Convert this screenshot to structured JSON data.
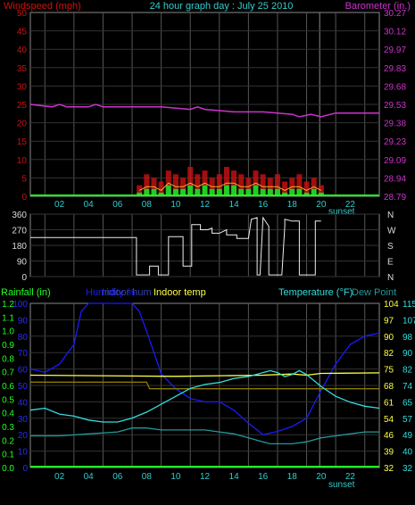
{
  "header": {
    "wind_label": "Windspeed (mph)",
    "title": "24 hour graph day : July 25 2010",
    "baro_label": "Barometer (in.)"
  },
  "colors": {
    "wind": "#cc1111",
    "baro": "#cc33cc",
    "gust": "#ff2a2a",
    "avgwind": "#22cc22",
    "rain": "#22ff22",
    "humidity": "#1a1aff",
    "indoor_hum": "#3344aa",
    "indoor_temp": "#ffff44",
    "temp": "#33dddd",
    "dew": "#229999",
    "grid": "#555555",
    "tick": "#33cccc",
    "axis_light": "#cccccc"
  },
  "legend": {
    "rainfall": "Rainfall (in)",
    "humidity": "Humidity %",
    "indoor_hum": "Indoor hum",
    "indoor_temp": "Indoor temp",
    "temperature": "Temperature (°F)",
    "dew_point": "Dew Point"
  },
  "sunset_label": "sunset",
  "chart_data": [
    {
      "type": "line",
      "title": "24 hour graph day : July 25 2010",
      "xticks": [
        "02",
        "04",
        "06",
        "08",
        "10",
        "12",
        "14",
        "16",
        "18",
        "20",
        "22"
      ],
      "y_left": {
        "label": "Windspeed (mph)",
        "ticks": [
          0,
          5,
          10,
          15,
          20,
          25,
          30,
          35,
          40,
          45,
          50
        ]
      },
      "y_right": {
        "label": "Barometer (in.)",
        "ticks": [
          "28.79",
          "28.94",
          "29.09",
          "29.23",
          "29.38",
          "29.53",
          "29.68",
          "29.83",
          "29.97",
          "30.12",
          "30.27"
        ]
      },
      "series": [
        {
          "name": "Barometer",
          "axis": "right",
          "x": [
            0,
            1.5,
            2,
            2.5,
            4,
            4.5,
            5,
            9,
            11,
            11.5,
            12,
            14,
            16,
            18,
            18.5,
            19.3,
            20,
            21,
            24
          ],
          "y": [
            29.53,
            29.51,
            29.53,
            29.51,
            29.51,
            29.53,
            29.51,
            29.51,
            29.49,
            29.51,
            29.49,
            29.47,
            29.47,
            29.45,
            29.43,
            29.45,
            29.43,
            29.46,
            29.46
          ]
        },
        {
          "axis": "left",
          "x": [
            7.5,
            8,
            8.5,
            9,
            9.5,
            10,
            10.5,
            11,
            11.5,
            12,
            12.5,
            13,
            13.5,
            14,
            14.5,
            15,
            15.5,
            16,
            16.5,
            17,
            17.5,
            18,
            18.5,
            19,
            19.5,
            20
          ],
          "y": [
            3,
            6,
            5,
            4,
            7,
            6,
            5,
            8,
            6,
            7,
            5,
            6,
            8,
            7,
            6,
            5,
            7,
            6,
            5,
            6,
            4,
            5,
            6,
            4,
            5,
            3
          ]
        },
        {
          "axis": "left",
          "x": [
            7.5,
            8,
            8.5,
            9,
            9.5,
            10,
            10.5,
            11,
            11.5,
            12,
            12.5,
            13,
            13.5,
            14,
            14.5,
            15,
            15.5,
            16,
            16.5,
            17,
            17.5,
            18,
            18.5,
            19,
            19.5,
            20
          ],
          "y": [
            1,
            2,
            2,
            1,
            3,
            2,
            2,
            3,
            2,
            3,
            2,
            2,
            3,
            3,
            2,
            2,
            3,
            2,
            2,
            2,
            1,
            2,
            2,
            1,
            2,
            1
          ]
        }
      ]
    },
    {
      "type": "line",
      "y_left": {
        "ticks": [
          0,
          90,
          180,
          270,
          360
        ]
      },
      "y_right": {
        "ticks": [
          "N",
          "E",
          "S",
          "W",
          "N"
        ]
      },
      "series": [
        {
          "x": [
            0,
            7.3,
            7.3,
            8.2,
            8.2,
            8.8,
            8.8,
            9.5,
            9.5,
            10.5,
            10.5,
            11.1,
            11.1,
            11.7,
            11.7,
            12.2,
            12.5,
            12.5,
            13.0,
            13.5,
            13.5,
            14.2,
            14.2,
            15.0,
            15.2,
            15.6,
            15.6,
            15.8,
            16.0,
            16.4,
            16.4,
            17.3,
            17.5,
            17.5,
            18.0,
            18.5,
            18.5,
            19.6,
            19.6,
            20.0
          ],
          "y": [
            225,
            225,
            10,
            10,
            60,
            60,
            10,
            10,
            230,
            230,
            60,
            60,
            300,
            300,
            270,
            270,
            280,
            250,
            250,
            270,
            240,
            240,
            220,
            220,
            330,
            340,
            10,
            10,
            340,
            290,
            10,
            10,
            290,
            330,
            320,
            320,
            10,
            10,
            320,
            320
          ]
        }
      ]
    },
    {
      "type": "line",
      "xticks": [
        "02",
        "04",
        "06",
        "08",
        "10",
        "12",
        "14",
        "16",
        "18",
        "20",
        "22"
      ],
      "y_left": {
        "label": "Rainfall (in)",
        "ticks": [
          "0.0",
          "0.1",
          "0.2",
          "0.3",
          "0.4",
          "0.5",
          "0.6",
          "0.7",
          "0.8",
          "0.9",
          "1.0",
          "1.1",
          "1.2"
        ]
      },
      "y_left2": {
        "label": "Humidity %",
        "ticks": [
          0,
          10,
          20,
          30,
          40,
          50,
          60,
          70,
          80,
          90,
          100
        ]
      },
      "y_right_inner": {
        "label": "Indoor temp",
        "ticks": [
          32,
          39,
          46,
          54,
          61,
          68,
          75,
          82,
          90,
          97,
          104
        ]
      },
      "y_right_outer": {
        "label": "Temperature (°F)",
        "ticks": [
          32,
          40,
          49,
          57,
          65,
          74,
          82,
          90,
          98,
          107,
          115
        ]
      },
      "series": [
        {
          "name": "Humidity %",
          "axis": "humidity",
          "x": [
            0,
            1,
            2,
            3,
            3.5,
            4,
            4.5,
            5,
            6,
            7,
            7.5,
            8,
            8.5,
            9,
            10,
            11,
            12,
            13,
            14,
            15,
            16,
            17,
            18,
            19,
            20,
            21,
            22,
            23,
            24
          ],
          "y": [
            60,
            58,
            63,
            75,
            95,
            100,
            100,
            100,
            100,
            100,
            95,
            83,
            70,
            57,
            48,
            42,
            40,
            40,
            35,
            27,
            20,
            22,
            25,
            30,
            47,
            63,
            75,
            80,
            82
          ]
        },
        {
          "name": "Indoor hum",
          "axis": "humidity",
          "x": [
            0,
            8,
            8.2,
            24
          ],
          "y": [
            52,
            52,
            48,
            48
          ]
        },
        {
          "name": "Indoor temp",
          "axis": "indoor",
          "x": [
            0,
            10,
            16,
            18,
            19,
            20,
            24
          ],
          "y": [
            72.5,
            72.0,
            72.5,
            73.0,
            72.5,
            73.3,
            73.5
          ]
        },
        {
          "name": "Temperature (°F)",
          "axis": "temp",
          "x": [
            0,
            1,
            2,
            3,
            4,
            5,
            6,
            7,
            8,
            9,
            10,
            11,
            12,
            13,
            14,
            15,
            16,
            16.5,
            17,
            17.5,
            18,
            18.5,
            19,
            20,
            21,
            22,
            23,
            24
          ],
          "y": [
            61,
            62,
            59,
            58,
            56,
            55,
            55,
            57,
            60,
            64,
            68,
            72,
            74,
            75,
            77,
            78,
            80,
            81,
            80,
            78,
            79,
            81,
            79,
            73,
            68,
            65,
            63,
            62
          ]
        },
        {
          "name": "Dew Point",
          "axis": "temp",
          "x": [
            0,
            2,
            4,
            6,
            7,
            8,
            9,
            10,
            11,
            12,
            13,
            14,
            15,
            16,
            16.5,
            17,
            18,
            19,
            20,
            21,
            22,
            23,
            24
          ],
          "y": [
            48,
            48,
            49,
            50,
            52,
            52,
            51,
            51,
            51,
            51,
            50,
            49,
            47,
            45,
            44,
            44,
            44,
            45,
            47,
            48,
            49,
            50,
            50
          ]
        }
      ]
    }
  ]
}
